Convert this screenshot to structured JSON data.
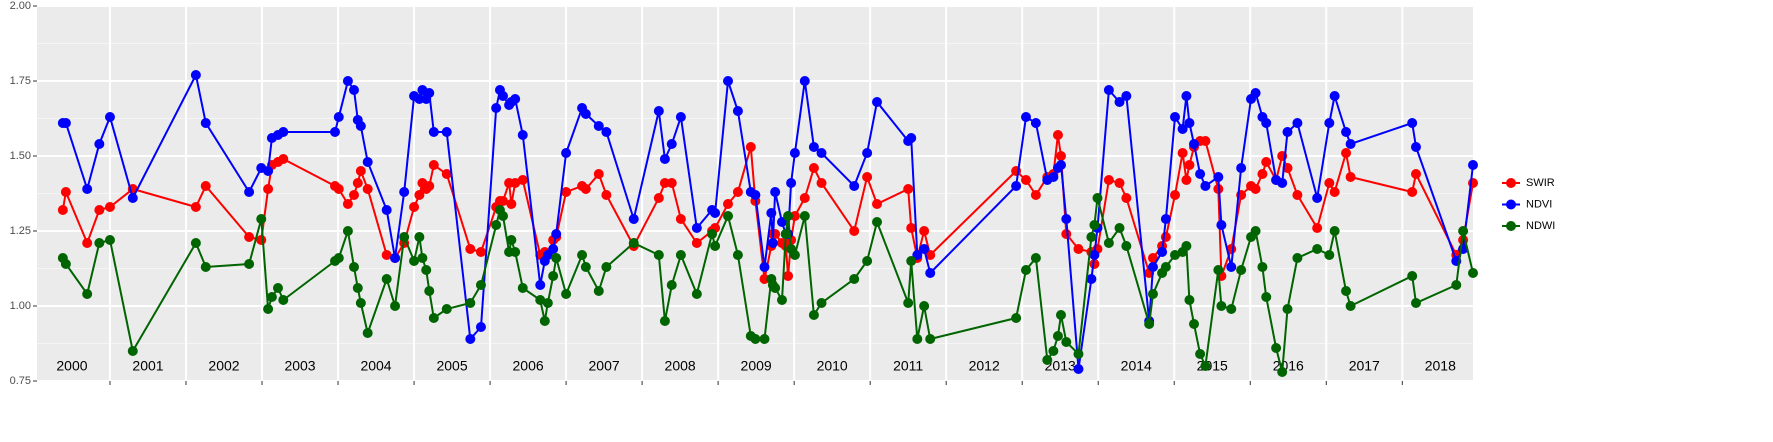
{
  "chart_data": {
    "type": "line",
    "x": [
      2000.38,
      2000.42,
      2000.7,
      2000.86,
      2001.0,
      2001.3,
      2002.13,
      2002.26,
      2002.83,
      2002.99,
      2003.08,
      2003.13,
      2003.21,
      2003.28,
      2003.96,
      2004.01,
      2004.13,
      2004.21,
      2004.26,
      2004.3,
      2004.39,
      2004.64,
      2004.75,
      2004.87,
      2005.0,
      2005.07,
      2005.11,
      2005.16,
      2005.2,
      2005.26,
      2005.43,
      2005.74,
      2005.88,
      2006.08,
      2006.13,
      2006.17,
      2006.25,
      2006.28,
      2006.33,
      2006.43,
      2006.66,
      2006.72,
      2006.76,
      2006.83,
      2006.87,
      2007.0,
      2007.21,
      2007.26,
      2007.43,
      2007.53,
      2007.89,
      2008.22,
      2008.3,
      2008.39,
      2008.51,
      2008.72,
      2008.92,
      2008.96,
      2009.13,
      2009.26,
      2009.43,
      2009.49,
      2009.61,
      2009.7,
      2009.72,
      2009.75,
      2009.84,
      2009.89,
      2009.92,
      2009.96,
      2010.01,
      2010.14,
      2010.26,
      2010.36,
      2010.79,
      2010.96,
      2011.09,
      2011.5,
      2011.54,
      2011.62,
      2011.71,
      2011.79,
      2012.92,
      2013.05,
      2013.18,
      2013.33,
      2013.41,
      2013.47,
      2013.51,
      2013.58,
      2013.74,
      2013.91,
      2013.95,
      2013.99,
      2014.14,
      2014.28,
      2014.37,
      2014.67,
      2014.72,
      2014.84,
      2014.89,
      2015.01,
      2015.11,
      2015.16,
      2015.2,
      2015.26,
      2015.34,
      2015.41,
      2015.58,
      2015.62,
      2015.75,
      2015.88,
      2016.01,
      2016.07,
      2016.16,
      2016.21,
      2016.34,
      2016.42,
      2016.49,
      2016.62,
      2016.88,
      2017.04,
      2017.11,
      2017.26,
      2017.32,
      2018.13,
      2018.18,
      2018.71,
      2018.8,
      2018.93
    ],
    "series": [
      {
        "name": "SWIR",
        "color": "#ff0000",
        "values": [
          1.32,
          1.38,
          1.21,
          1.32,
          1.33,
          1.39,
          1.33,
          1.4,
          1.23,
          1.22,
          1.39,
          1.47,
          1.48,
          1.49,
          1.4,
          1.39,
          1.34,
          1.37,
          1.41,
          1.45,
          1.39,
          1.17,
          1.16,
          1.21,
          1.33,
          1.37,
          1.41,
          1.39,
          1.4,
          1.47,
          1.44,
          1.19,
          1.18,
          1.33,
          1.35,
          1.35,
          1.41,
          1.34,
          1.41,
          1.42,
          1.17,
          1.18,
          1.17,
          1.22,
          1.23,
          1.38,
          1.4,
          1.39,
          1.44,
          1.37,
          1.2,
          1.36,
          1.41,
          1.41,
          1.29,
          1.21,
          1.25,
          1.26,
          1.34,
          1.38,
          1.53,
          1.35,
          1.09,
          1.2,
          1.24,
          1.24,
          1.21,
          1.2,
          1.1,
          1.22,
          1.3,
          1.36,
          1.46,
          1.41,
          1.25,
          1.43,
          1.34,
          1.39,
          1.26,
          1.16,
          1.25,
          1.17,
          1.45,
          1.42,
          1.37,
          1.43,
          1.44,
          1.57,
          1.5,
          1.24,
          1.19,
          1.18,
          1.14,
          1.19,
          1.42,
          1.41,
          1.36,
          1.11,
          1.16,
          1.2,
          1.23,
          1.37,
          1.51,
          1.42,
          1.47,
          1.53,
          1.55,
          1.55,
          1.39,
          1.1,
          1.19,
          1.37,
          1.4,
          1.39,
          1.44,
          1.48,
          1.42,
          1.5,
          1.46,
          1.37,
          1.26,
          1.41,
          1.38,
          1.51,
          1.43,
          1.38,
          1.44,
          1.17,
          1.22,
          1.41
        ]
      },
      {
        "name": "NDVI",
        "color": "#0000ff",
        "values": [
          1.61,
          1.61,
          1.39,
          1.54,
          1.63,
          1.36,
          1.77,
          1.61,
          1.38,
          1.46,
          1.45,
          1.56,
          1.57,
          1.58,
          1.58,
          1.63,
          1.75,
          1.72,
          1.62,
          1.6,
          1.48,
          1.32,
          1.16,
          1.38,
          1.7,
          1.69,
          1.72,
          1.69,
          1.71,
          1.58,
          1.58,
          0.89,
          0.93,
          1.66,
          1.72,
          1.7,
          1.67,
          1.68,
          1.69,
          1.57,
          1.07,
          1.15,
          1.17,
          1.19,
          1.24,
          1.51,
          1.66,
          1.64,
          1.6,
          1.58,
          1.29,
          1.65,
          1.49,
          1.54,
          1.63,
          1.26,
          1.32,
          1.31,
          1.75,
          1.65,
          1.38,
          1.37,
          1.13,
          1.31,
          1.21,
          1.38,
          1.28,
          1.24,
          1.24,
          1.41,
          1.51,
          1.75,
          1.53,
          1.51,
          1.4,
          1.51,
          1.68,
          1.55,
          1.56,
          1.17,
          1.19,
          1.11,
          1.4,
          1.63,
          1.61,
          1.42,
          1.43,
          1.46,
          1.47,
          1.29,
          0.79,
          1.09,
          1.17,
          1.26,
          1.72,
          1.68,
          1.7,
          0.95,
          1.13,
          1.18,
          1.29,
          1.63,
          1.59,
          1.7,
          1.61,
          1.54,
          1.44,
          1.4,
          1.43,
          1.27,
          1.13,
          1.46,
          1.69,
          1.71,
          1.63,
          1.61,
          1.42,
          1.41,
          1.58,
          1.61,
          1.36,
          1.61,
          1.7,
          1.58,
          1.54,
          1.61,
          1.53,
          1.15,
          1.19,
          1.47
        ]
      },
      {
        "name": "NDWI",
        "color": "#006400",
        "values": [
          1.16,
          1.14,
          1.04,
          1.21,
          1.22,
          0.85,
          1.21,
          1.13,
          1.14,
          1.29,
          0.99,
          1.03,
          1.06,
          1.02,
          1.15,
          1.16,
          1.25,
          1.13,
          1.06,
          1.01,
          0.91,
          1.09,
          1.0,
          1.23,
          1.15,
          1.23,
          1.16,
          1.12,
          1.05,
          0.96,
          0.99,
          1.01,
          1.07,
          1.27,
          1.32,
          1.3,
          1.18,
          1.22,
          1.18,
          1.06,
          1.02,
          0.95,
          1.01,
          1.1,
          1.16,
          1.04,
          1.17,
          1.13,
          1.05,
          1.13,
          1.21,
          1.17,
          0.95,
          1.07,
          1.17,
          1.04,
          1.24,
          1.2,
          1.3,
          1.17,
          0.9,
          0.89,
          0.89,
          1.09,
          1.07,
          1.06,
          1.02,
          1.24,
          1.3,
          1.19,
          1.17,
          1.3,
          0.97,
          1.01,
          1.09,
          1.15,
          1.28,
          1.01,
          1.15,
          0.89,
          1.0,
          0.89,
          0.96,
          1.12,
          1.16,
          0.82,
          0.85,
          0.9,
          0.97,
          0.88,
          0.84,
          1.23,
          1.27,
          1.36,
          1.21,
          1.26,
          1.2,
          0.94,
          1.04,
          1.11,
          1.13,
          1.17,
          1.18,
          1.2,
          1.02,
          0.94,
          0.84,
          0.8,
          1.12,
          1.0,
          0.99,
          1.12,
          1.23,
          1.25,
          1.13,
          1.03,
          0.86,
          0.78,
          0.99,
          1.16,
          1.19,
          1.17,
          1.25,
          1.05,
          1.0,
          1.1,
          1.01,
          1.07,
          1.25,
          1.11
        ]
      }
    ],
    "xlim": [
      2000.04,
      2018.93
    ],
    "xticks": [
      2001,
      2002,
      2003,
      2004,
      2005,
      2006,
      2007,
      2008,
      2009,
      2010,
      2011,
      2012,
      2013,
      2014,
      2015,
      2016,
      2017,
      2018
    ],
    "ylim": [
      0.75,
      2
    ],
    "yticks": [
      {
        "value": 0.75,
        "label": "0.75"
      },
      {
        "value": 1,
        "label": "1.00"
      },
      1.25,
      {
        "value": 1.5,
        "label": "1.50"
      },
      1.75,
      {
        "value": 2,
        "label": "2.00"
      }
    ],
    "yminor": [
      0.875,
      1.125,
      1.375,
      1.625,
      1.875
    ],
    "annotations": [
      {
        "x": 2000.5,
        "text": "2000"
      },
      {
        "x": 2001.5,
        "text": "2001"
      },
      {
        "x": 2002.5,
        "text": "2002"
      },
      {
        "x": 2003.5,
        "text": "2003"
      },
      {
        "x": 2004.5,
        "text": "2004"
      },
      {
        "x": 2005.5,
        "text": "2005"
      },
      {
        "x": 2006.5,
        "text": "2006"
      },
      {
        "x": 2007.5,
        "text": "2007"
      },
      {
        "x": 2008.5,
        "text": "2008"
      },
      {
        "x": 2009.5,
        "text": "2009"
      },
      {
        "x": 2010.5,
        "text": "2010"
      },
      {
        "x": 2011.5,
        "text": "2011"
      },
      {
        "x": 2012.5,
        "text": "2012"
      },
      {
        "x": 2013.5,
        "text": "2013"
      },
      {
        "x": 2014.5,
        "text": "2014"
      },
      {
        "x": 2015.5,
        "text": "2015"
      },
      {
        "x": 2016.5,
        "text": "2016"
      },
      {
        "x": 2017.5,
        "text": "2017"
      },
      {
        "x": 2018.5,
        "text": "2018"
      }
    ],
    "grid": true,
    "legend": "right"
  }
}
